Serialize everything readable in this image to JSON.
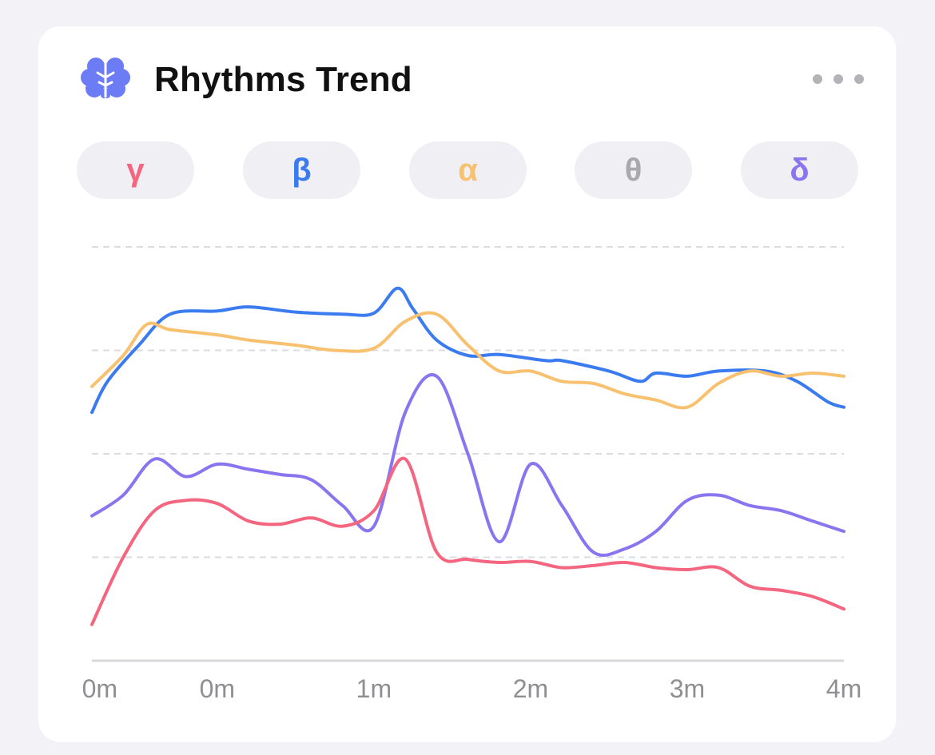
{
  "header": {
    "title": "Rhythms Trend",
    "icon": "brain-icon",
    "more_icon": "ellipsis-icon",
    "accent": "#6b7cf5"
  },
  "filters": [
    {
      "label": "γ",
      "color": "#f4657f"
    },
    {
      "label": "β",
      "color": "#3b7bf0"
    },
    {
      "label": "α",
      "color": "#f7c170"
    },
    {
      "label": "θ",
      "color": "#a8a8ad"
    },
    {
      "label": "δ",
      "color": "#8a74ef"
    }
  ],
  "chart_data": {
    "type": "line",
    "xlim": [
      0,
      4.8
    ],
    "ylim": [
      0,
      4
    ],
    "grid": true,
    "x_tick_labels": [
      "0m",
      "0m",
      "1m",
      "2m",
      "3m",
      "4m"
    ],
    "x_tick_positions": [
      0.05,
      0.8,
      1.8,
      2.8,
      3.8,
      4.8
    ],
    "series": [
      {
        "color": "#3b7bf0",
        "x": [
          0,
          0.1,
          0.3,
          0.5,
          0.8,
          1.0,
          1.3,
          1.6,
          1.8,
          1.95,
          2.05,
          2.2,
          2.4,
          2.6,
          2.9,
          3.0,
          3.3,
          3.5,
          3.6,
          3.8,
          4.0,
          4.3,
          4.5,
          4.7,
          4.8
        ],
        "y": [
          2.4,
          2.7,
          3.05,
          3.35,
          3.38,
          3.42,
          3.37,
          3.35,
          3.36,
          3.6,
          3.4,
          3.1,
          2.95,
          2.96,
          2.9,
          2.9,
          2.8,
          2.7,
          2.78,
          2.75,
          2.8,
          2.8,
          2.7,
          2.5,
          2.45
        ]
      },
      {
        "color": "#f7c170",
        "x": [
          0,
          0.2,
          0.35,
          0.5,
          0.8,
          1.0,
          1.3,
          1.55,
          1.8,
          2.0,
          2.2,
          2.4,
          2.6,
          2.8,
          3.0,
          3.2,
          3.4,
          3.6,
          3.8,
          4.0,
          4.2,
          4.4,
          4.6,
          4.8
        ],
        "y": [
          2.65,
          2.95,
          3.25,
          3.2,
          3.15,
          3.1,
          3.05,
          3.0,
          3.02,
          3.28,
          3.35,
          3.05,
          2.8,
          2.8,
          2.7,
          2.68,
          2.58,
          2.52,
          2.45,
          2.68,
          2.8,
          2.75,
          2.78,
          2.75
        ]
      },
      {
        "color": "#8a74ef",
        "x": [
          0,
          0.2,
          0.4,
          0.6,
          0.8,
          1.0,
          1.2,
          1.4,
          1.6,
          1.8,
          2.0,
          2.2,
          2.4,
          2.6,
          2.8,
          3.0,
          3.2,
          3.4,
          3.6,
          3.8,
          4.0,
          4.2,
          4.4,
          4.6,
          4.8
        ],
        "y": [
          1.4,
          1.6,
          1.95,
          1.78,
          1.9,
          1.85,
          1.8,
          1.75,
          1.5,
          1.3,
          2.4,
          2.75,
          2.0,
          1.15,
          1.9,
          1.5,
          1.05,
          1.08,
          1.25,
          1.55,
          1.6,
          1.5,
          1.45,
          1.35,
          1.25
        ]
      },
      {
        "color": "#f4657f",
        "x": [
          0,
          0.2,
          0.4,
          0.6,
          0.8,
          1.0,
          1.2,
          1.4,
          1.6,
          1.8,
          2.0,
          2.2,
          2.4,
          2.6,
          2.8,
          3.0,
          3.2,
          3.4,
          3.6,
          3.8,
          4.0,
          4.2,
          4.4,
          4.6,
          4.8
        ],
        "y": [
          0.35,
          1.0,
          1.45,
          1.55,
          1.52,
          1.35,
          1.32,
          1.38,
          1.3,
          1.45,
          1.95,
          1.05,
          0.98,
          0.95,
          0.96,
          0.9,
          0.92,
          0.95,
          0.9,
          0.88,
          0.9,
          0.72,
          0.68,
          0.62,
          0.5
        ]
      }
    ]
  }
}
